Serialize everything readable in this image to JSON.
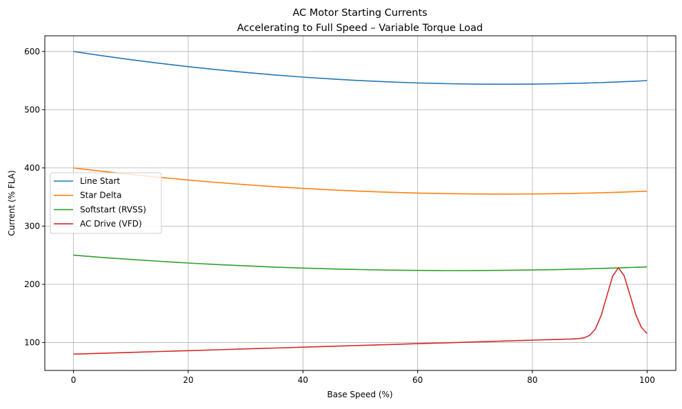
{
  "chart_data": {
    "type": "line",
    "title": "AC Motor Starting Currents",
    "subtitle": "Accelerating to Full Speed – Variable Torque Load",
    "xlabel": "Base Speed (%)",
    "ylabel": "Current (% FLA)",
    "xlim": [
      -5,
      105
    ],
    "ylim": [
      52,
      627
    ],
    "xticks": [
      0,
      20,
      40,
      60,
      80,
      100
    ],
    "yticks": [
      100,
      200,
      300,
      400,
      500,
      600
    ],
    "grid": true,
    "legend_placement": "center-left",
    "x": [
      0,
      5,
      10,
      15,
      20,
      25,
      30,
      35,
      40,
      45,
      50,
      55,
      60,
      65,
      70,
      75,
      80,
      85,
      86,
      87,
      88,
      89,
      90,
      91,
      92,
      93,
      94,
      95,
      96,
      97,
      98,
      99,
      100
    ],
    "series": [
      {
        "name": "Line Start",
        "color": "#1f77b4",
        "values": [
          600,
          592.8,
          586,
          579.8,
          574,
          568.8,
          564,
          559.8,
          556,
          552.8,
          550,
          547.8,
          546,
          544.8,
          544,
          543.8,
          544,
          544.8,
          545,
          545.2,
          545.4,
          545.7,
          546,
          546.3,
          546.6,
          547,
          547.4,
          547.8,
          548.2,
          548.6,
          549,
          549.5,
          550
        ]
      },
      {
        "name": "Star Delta",
        "color": "#ff7f0e",
        "values": [
          400,
          394.2,
          388.8,
          383.8,
          379.2,
          375,
          371.2,
          367.8,
          364.8,
          362.2,
          360,
          358.2,
          356.8,
          355.8,
          355.2,
          355,
          355.2,
          355.8,
          356,
          356.2,
          356.4,
          356.6,
          356.8,
          357,
          357.3,
          357.6,
          357.9,
          358.2,
          358.5,
          358.9,
          359.2,
          359.6,
          360
        ]
      },
      {
        "name": "Softstart (RVSS)",
        "color": "#2ca02c",
        "values": [
          250,
          246.2,
          242.7,
          239.5,
          236.6,
          234,
          231.7,
          229.6,
          227.9,
          226.4,
          225.3,
          224.4,
          223.9,
          223.6,
          223.7,
          224,
          224.6,
          225.5,
          225.7,
          226,
          226.2,
          226.4,
          226.7,
          227,
          227.3,
          227.6,
          227.9,
          228.2,
          228.5,
          228.9,
          229.2,
          229.6,
          230
        ]
      },
      {
        "name": "AC Drive (VFD)",
        "color": "#d62728",
        "values": [
          80,
          81.5,
          83,
          84.5,
          86,
          87.5,
          89,
          90.5,
          92,
          93.5,
          95,
          96.5,
          98,
          99.5,
          101,
          102.5,
          104,
          105.5,
          105.8,
          106.1,
          106.7,
          108,
          112.3,
          123.5,
          146.6,
          180.7,
          214.1,
          228.5,
          214.7,
          181.9,
          148.4,
          125.9,
          115.3
        ]
      }
    ]
  }
}
